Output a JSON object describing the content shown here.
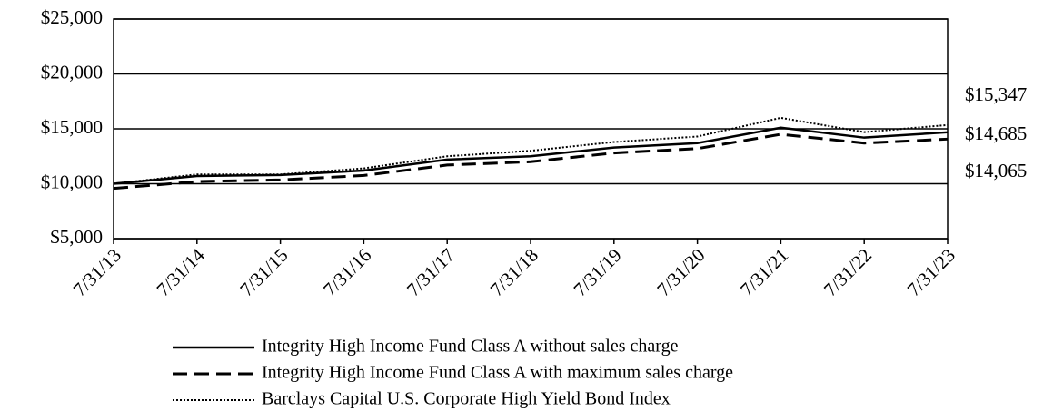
{
  "chart_data": {
    "type": "line",
    "categories": [
      "7/31/13",
      "7/31/14",
      "7/31/15",
      "7/31/16",
      "7/31/17",
      "7/31/18",
      "7/31/19",
      "7/31/20",
      "7/31/21",
      "7/31/22",
      "7/31/23"
    ],
    "series": [
      {
        "name": "Integrity High Income Fund Class A without sales charge",
        "color": "#000000",
        "line_style": "solid",
        "values": [
          10000,
          10700,
          10800,
          11200,
          12200,
          12500,
          13300,
          13700,
          15100,
          14200,
          14685
        ],
        "value_labels": [
          null,
          null,
          null,
          null,
          null,
          null,
          null,
          null,
          null,
          null,
          "$14,685"
        ]
      },
      {
        "name": "Integrity High Income Fund Class A with maximum sales charge",
        "color": "#000000",
        "line_style": "dashed",
        "values": [
          9575,
          10200,
          10350,
          10750,
          11700,
          12000,
          12800,
          13200,
          14500,
          13700,
          14065
        ],
        "value_labels": [
          null,
          null,
          null,
          null,
          null,
          null,
          null,
          null,
          null,
          null,
          "$14,065"
        ]
      },
      {
        "name": "Barclays Capital U.S. Corporate High Yield Bond Index",
        "color": "#000000",
        "line_style": "dotted",
        "values": [
          10000,
          10850,
          10850,
          11400,
          12500,
          13000,
          13800,
          14300,
          16000,
          14700,
          15347
        ],
        "value_labels": [
          null,
          null,
          null,
          null,
          null,
          null,
          null,
          null,
          null,
          null,
          "$15,347"
        ]
      }
    ],
    "ylim": [
      5000,
      25000
    ],
    "yticks": [
      {
        "value": 5000,
        "label": "$5,000"
      },
      {
        "value": 10000,
        "label": "$10,000"
      },
      {
        "value": 15000,
        "label": "$15,000"
      },
      {
        "value": 20000,
        "label": "$20,000"
      },
      {
        "value": 25000,
        "label": "$25,000"
      }
    ],
    "grid": true,
    "legend": "bottom"
  }
}
